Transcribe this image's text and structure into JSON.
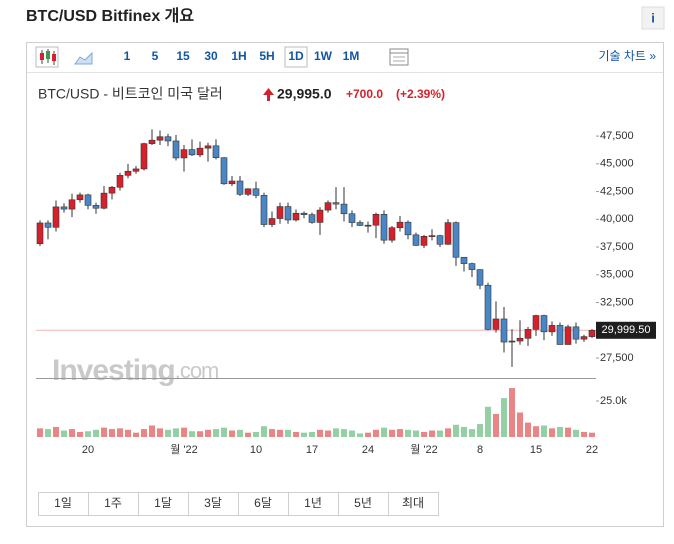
{
  "header": {
    "title": "BTC/USD Bitfinex 개요",
    "info": "i"
  },
  "toolbar": {
    "intervals": [
      "1",
      "5",
      "15",
      "30",
      "1H",
      "5H",
      "1D",
      "1W",
      "1M"
    ],
    "link": "기술 차트 »"
  },
  "quote": {
    "name": "BTC/USD - 비트코인 미국 달러",
    "price": "29,995.0",
    "change": "+700.0",
    "change_pct": "(+2.39%)"
  },
  "chart_data": {
    "type": "candlestick",
    "watermark": "Investing",
    "watermark_suffix": ".com",
    "categories": [
      null,
      null,
      null,
      null,
      null,
      null,
      "20",
      null,
      null,
      null,
      null,
      null,
      null,
      null,
      null,
      null,
      null,
      null,
      "월 '22",
      null,
      null,
      null,
      null,
      null,
      null,
      null,
      null,
      "10",
      null,
      null,
      null,
      null,
      null,
      null,
      "17",
      null,
      null,
      null,
      null,
      null,
      null,
      "24",
      null,
      null,
      null,
      null,
      null,
      null,
      "월 '22",
      null,
      null,
      null,
      null,
      null,
      null,
      "8",
      null,
      null,
      null,
      null,
      null,
      null,
      "15",
      null,
      null,
      null,
      null,
      null,
      null,
      "22"
    ],
    "open": [
      37800,
      39670,
      39280,
      41120,
      40920,
      41760,
      42200,
      41260,
      41000,
      42360,
      42890,
      43960,
      44330,
      44540,
      46820,
      47130,
      47440,
      47060,
      45530,
      46280,
      45810,
      46410,
      46620,
      45550,
      43200,
      43450,
      42250,
      42750,
      42160,
      39530,
      40070,
      41150,
      39940,
      40550,
      40420,
      39720,
      40830,
      41500,
      41370,
      40500,
      39710,
      39450,
      39470,
      40450,
      38120,
      39240,
      39740,
      38600,
      37650,
      38470,
      38530,
      37750,
      39700,
      36580,
      36010,
      35470,
      34060,
      30080,
      31020,
      28940,
      29030,
      29280,
      30080,
      31330,
      29860,
      30440,
      28720,
      30310,
      29200,
      29430
    ],
    "high": [
      39900,
      39900,
      41700,
      41450,
      42300,
      42400,
      42300,
      41500,
      43000,
      43000,
      44200,
      45000,
      44800,
      46900,
      48100,
      48000,
      47700,
      47600,
      46700,
      47200,
      47000,
      46900,
      47200,
      45600,
      43900,
      43900,
      42800,
      43400,
      42400,
      40700,
      41500,
      41500,
      40900,
      40700,
      40600,
      41100,
      41700,
      42900,
      42900,
      40800,
      39900,
      39800,
      40600,
      40800,
      39400,
      40300,
      39900,
      38800,
      38600,
      39100,
      38600,
      40000,
      39800,
      36600,
      36100,
      35500,
      34300,
      32600,
      32100,
      30100,
      30900,
      30300,
      31400,
      31400,
      30800,
      30700,
      30500,
      30700,
      29600,
      30100
    ],
    "low": [
      37600,
      38200,
      38900,
      40600,
      40200,
      41500,
      40900,
      40500,
      40900,
      41800,
      42600,
      43700,
      44100,
      44400,
      46700,
      46700,
      46600,
      45300,
      44300,
      45700,
      45600,
      45200,
      45400,
      43100,
      43000,
      42100,
      42100,
      41900,
      39300,
      39300,
      39600,
      39600,
      39800,
      40100,
      39600,
      38600,
      40600,
      40900,
      39800,
      39300,
      39400,
      38800,
      38300,
      37800,
      37900,
      38900,
      38200,
      37600,
      37400,
      38100,
      37500,
      37700,
      35800,
      35300,
      34800,
      33700,
      30000,
      29800,
      28000,
      26700,
      28700,
      28600,
      29500,
      29100,
      29500,
      28700,
      28700,
      28800,
      28950,
      29300
    ],
    "close": [
      39670,
      39280,
      41120,
      40920,
      41760,
      42200,
      41260,
      41000,
      42360,
      42890,
      43960,
      44330,
      44540,
      46820,
      47130,
      47440,
      47060,
      45530,
      46280,
      45810,
      46410,
      46620,
      45550,
      43200,
      43450,
      42250,
      42750,
      42160,
      39530,
      40070,
      41150,
      39940,
      40550,
      40420,
      39720,
      40830,
      41500,
      41370,
      40500,
      39710,
      39450,
      39470,
      40450,
      38120,
      39240,
      39740,
      38600,
      37650,
      38470,
      38530,
      37750,
      39700,
      36580,
      36010,
      35470,
      34060,
      30080,
      31020,
      28940,
      29030,
      29280,
      30080,
      31330,
      29860,
      30440,
      28720,
      30310,
      29200,
      29430,
      29995
    ],
    "up_color": "#d5212c",
    "down_color": "#4a86c6",
    "ylim": [
      25700,
      49850
    ],
    "yticks": [
      {
        "value": 27500,
        "label": "27,500"
      },
      {
        "value": 32500,
        "label": "32,500"
      },
      {
        "value": 35000,
        "label": "35,000"
      },
      {
        "value": 37500,
        "label": "37,500"
      },
      {
        "value": 40000,
        "label": "40,000"
      },
      {
        "value": 42500,
        "label": "42,500"
      },
      {
        "value": 45000,
        "label": "45,000"
      },
      {
        "value": 47500,
        "label": "47,500"
      }
    ],
    "last_price": {
      "value": 29999.5,
      "label": "29,999.50"
    },
    "volume": {
      "values": [
        6000,
        5500,
        7000,
        4500,
        5500,
        3500,
        4000,
        5000,
        6500,
        5500,
        6000,
        5000,
        3000,
        5500,
        8000,
        6000,
        5000,
        6000,
        6500,
        4000,
        4000,
        5000,
        5500,
        6500,
        4500,
        5000,
        3000,
        3500,
        7500,
        5500,
        5000,
        5000,
        3500,
        3000,
        3500,
        5000,
        4500,
        6000,
        5500,
        4500,
        2500,
        3000,
        5000,
        6500,
        5000,
        5500,
        5000,
        4500,
        3500,
        4500,
        4500,
        6000,
        8500,
        7000,
        5500,
        9000,
        21000,
        16000,
        27000,
        34000,
        17000,
        10000,
        7500,
        8000,
        6000,
        7000,
        6500,
        5000,
        3500,
        3000
      ],
      "ylim": [
        0,
        39600
      ],
      "yticks": [
        {
          "value": 25000,
          "label": "25.0k"
        }
      ],
      "up_color": "#e98585",
      "down_color": "#93d1a4"
    }
  },
  "ranges": [
    "1일",
    "1주",
    "1달",
    "3달",
    "6달",
    "1년",
    "5년",
    "최대"
  ]
}
